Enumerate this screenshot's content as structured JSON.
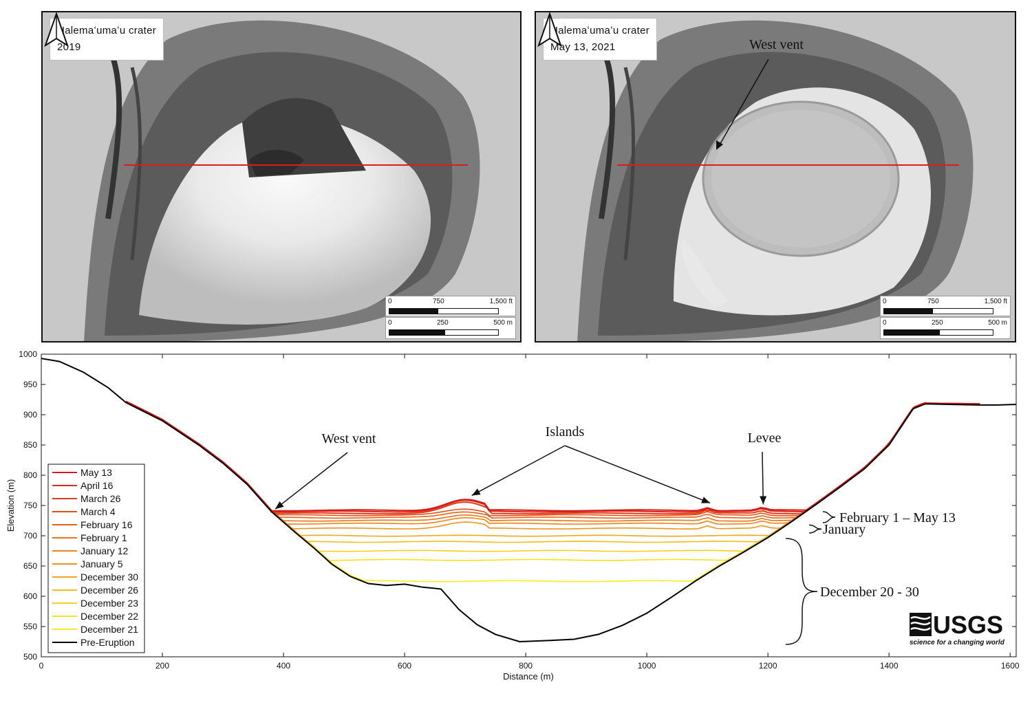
{
  "map_left": {
    "title_line1": "Halemaʻumaʻu crater",
    "title_line2": "2019",
    "scale_ft": [
      "0",
      "750",
      "1,500 ft"
    ],
    "scale_m": [
      "0",
      "250",
      "500 m"
    ],
    "icon": "north-arrow-icon"
  },
  "map_right": {
    "title_line1": "Halemaʻumaʻu crater",
    "title_line2": "May 13, 2021",
    "vent_label": "West vent",
    "scale_ft": [
      "0",
      "750",
      "1,500 ft"
    ],
    "scale_m": [
      "0",
      "250",
      "500 m"
    ],
    "icon": "north-arrow-icon"
  },
  "logo": {
    "text": "USGS",
    "tagline": "science for a changing world"
  },
  "colors": {
    "profile_line": "#e0191b",
    "pre_eruption": "#000000"
  },
  "chart_data": {
    "type": "line",
    "title": "",
    "xlabel": "Distance (m)",
    "ylabel": "Elevation (m)",
    "xlim": [
      0,
      1610
    ],
    "ylim": [
      500,
      1000
    ],
    "xticks": [
      0,
      200,
      400,
      600,
      800,
      1000,
      1200,
      1400,
      1600
    ],
    "yticks": [
      500,
      550,
      600,
      650,
      700,
      750,
      800,
      850,
      900,
      950,
      1000
    ],
    "legend_position": "lower-left",
    "pre_eruption": {
      "name": "Pre-Eruption",
      "color": "#000000",
      "points": [
        [
          0,
          993
        ],
        [
          30,
          988
        ],
        [
          70,
          970
        ],
        [
          110,
          945
        ],
        [
          140,
          920
        ],
        [
          160,
          910
        ],
        [
          200,
          890
        ],
        [
          260,
          850
        ],
        [
          300,
          820
        ],
        [
          340,
          785
        ],
        [
          380,
          740
        ],
        [
          420,
          705
        ],
        [
          450,
          680
        ],
        [
          480,
          653
        ],
        [
          510,
          633
        ],
        [
          540,
          621
        ],
        [
          570,
          618
        ],
        [
          600,
          620
        ],
        [
          630,
          615
        ],
        [
          660,
          612
        ],
        [
          690,
          578
        ],
        [
          720,
          553
        ],
        [
          750,
          537
        ],
        [
          790,
          525
        ],
        [
          840,
          527
        ],
        [
          880,
          529
        ],
        [
          920,
          537
        ],
        [
          960,
          552
        ],
        [
          1000,
          572
        ],
        [
          1040,
          598
        ],
        [
          1080,
          625
        ],
        [
          1120,
          650
        ],
        [
          1160,
          673
        ],
        [
          1200,
          697
        ],
        [
          1240,
          724
        ],
        [
          1280,
          752
        ],
        [
          1320,
          781
        ],
        [
          1360,
          811
        ],
        [
          1400,
          850
        ],
        [
          1440,
          910
        ],
        [
          1460,
          918
        ],
        [
          1500,
          917
        ],
        [
          1550,
          916
        ],
        [
          1580,
          916
        ],
        [
          1610,
          917
        ]
      ]
    },
    "series": [
      {
        "name": "May 13",
        "color": "#d7191c",
        "level": 742
      },
      {
        "name": "April 16",
        "color": "#dc2a19",
        "level": 740
      },
      {
        "name": "March 26",
        "color": "#e03c18",
        "level": 737
      },
      {
        "name": "March 4",
        "color": "#e44f17",
        "level": 734
      },
      {
        "name": "February 16",
        "color": "#e86115",
        "level": 730
      },
      {
        "name": "February 1",
        "color": "#ec7214",
        "level": 725
      },
      {
        "name": "January 12",
        "color": "#ef8313",
        "level": 720
      },
      {
        "name": "January 5",
        "color": "#f1921a",
        "level": 712
      },
      {
        "name": "December 30",
        "color": "#f4a519",
        "level": 700
      },
      {
        "name": "December 26",
        "color": "#f7bc18",
        "level": 690
      },
      {
        "name": "December 23",
        "color": "#f9d017",
        "level": 675
      },
      {
        "name": "December 22",
        "color": "#fbe217",
        "level": 660
      },
      {
        "name": "December 21",
        "color": "#fcec1c",
        "level": 625
      }
    ],
    "annotations": [
      {
        "text": "West vent",
        "target": [
          375,
          735
        ]
      },
      {
        "text": "Islands",
        "target": [
          720,
          762
        ]
      },
      {
        "text": "Islands",
        "target": [
          1100,
          745
        ]
      },
      {
        "text": "Levee",
        "target": [
          1190,
          745
        ]
      }
    ],
    "brackets": [
      {
        "text": "February 1  – May 13",
        "range": [
          725,
          742
        ]
      },
      {
        "text": "January",
        "range": [
          700,
          720
        ]
      },
      {
        "text": "December 20 - 30",
        "range": [
          525,
          700
        ]
      }
    ]
  }
}
